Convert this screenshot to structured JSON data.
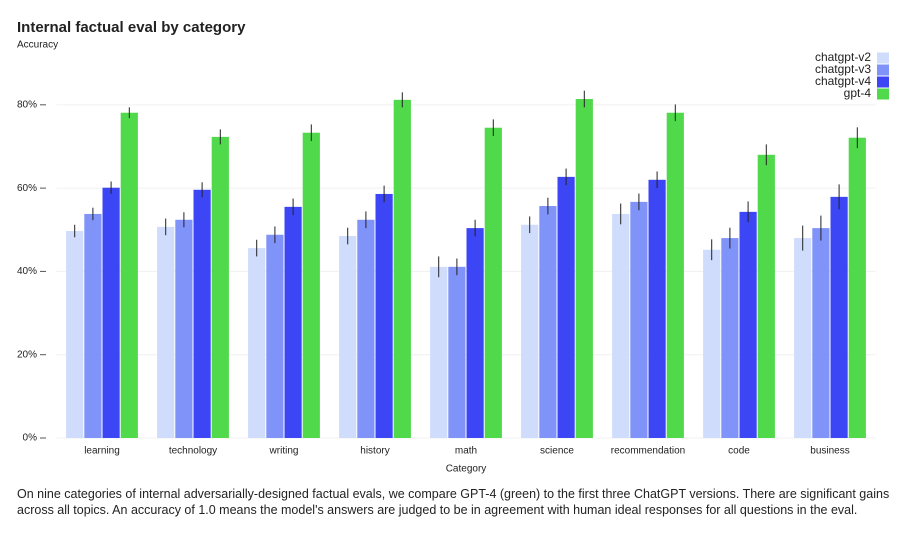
{
  "chart_data": {
    "type": "bar",
    "title": "Internal factual eval by category",
    "y_label": "Accuracy",
    "x_label": "Category",
    "caption": "On nine categories of internal adversarially-designed factual evals, we compare GPT-4 (green) to the first three ChatGPT versions. There are significant gains across all topics. An accuracy of 1.0 means the model's answers are judged to be in agreement with human ideal responses for all questions in the eval.",
    "categories": [
      "learning",
      "technology",
      "writing",
      "history",
      "math",
      "science",
      "recommendation",
      "code",
      "business"
    ],
    "series": [
      {
        "name": "chatgpt-v2",
        "color": "#cfdcfb",
        "values": [
          49.7,
          50.7,
          45.6,
          48.5,
          41.1,
          51.2,
          53.8,
          45.2,
          48.0
        ],
        "errors": [
          1.5,
          2.0,
          2.0,
          2.0,
          2.5,
          2.0,
          2.5,
          2.5,
          3.0
        ]
      },
      {
        "name": "chatgpt-v3",
        "color": "#8093f8",
        "values": [
          53.8,
          52.4,
          48.8,
          52.4,
          41.1,
          55.7,
          56.7,
          48.0,
          50.4
        ],
        "errors": [
          1.5,
          1.8,
          2.0,
          2.0,
          2.0,
          2.0,
          2.0,
          2.5,
          3.0
        ]
      },
      {
        "name": "chatgpt-v4",
        "color": "#3c46f5",
        "values": [
          60.1,
          59.6,
          55.5,
          58.6,
          50.4,
          62.7,
          62.0,
          54.3,
          57.9
        ],
        "errors": [
          1.5,
          1.8,
          2.0,
          2.0,
          2.0,
          2.0,
          2.0,
          2.5,
          3.0
        ]
      },
      {
        "name": "gpt-4",
        "color": "#50d94a",
        "values": [
          78.1,
          72.3,
          73.3,
          81.2,
          74.5,
          81.4,
          78.1,
          68.0,
          72.1
        ],
        "errors": [
          1.3,
          1.8,
          2.0,
          1.8,
          2.0,
          2.0,
          2.0,
          2.5,
          2.5
        ]
      }
    ],
    "ylim": [
      0,
      85
    ],
    "yticks": [
      {
        "value": 0,
        "label": "0%"
      },
      {
        "value": 20,
        "label": "20%"
      },
      {
        "value": 40,
        "label": "40%"
      },
      {
        "value": 60,
        "label": "60%"
      },
      {
        "value": 80,
        "label": "80%"
      }
    ],
    "grid": true,
    "legend": "top-right"
  }
}
